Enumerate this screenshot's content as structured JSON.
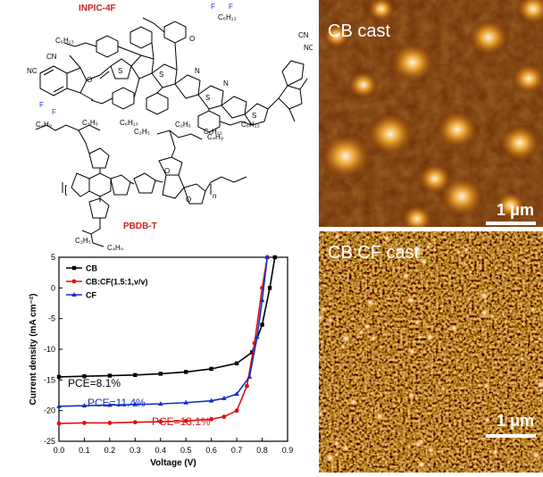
{
  "chemistry": {
    "acceptor_name": "INPIC-4F",
    "donor_name": "PBDB-T",
    "label_color": "#cc2222",
    "atoms": {
      "F": "F",
      "N": "N",
      "O": "O",
      "S": "S",
      "CN": "CN",
      "NC": "NC",
      "C6H13": "C₆H₁₃",
      "C4H9": "C₄H₉",
      "C2H5": "C₂H₅",
      "n": "n"
    }
  },
  "afm": {
    "top_label": "CB cast",
    "bottom_label": "CB:CF cast",
    "scale_bar_label": "1 μm"
  },
  "chart_data": {
    "type": "line",
    "xlabel": "Voltage (V)",
    "ylabel": "Current density (mA cm⁻²)",
    "xlim": [
      0.0,
      0.9
    ],
    "ylim": [
      -25,
      5
    ],
    "x_ticks": [
      "0.0",
      "0.1",
      "0.2",
      "0.3",
      "0.4",
      "0.5",
      "0.6",
      "0.7",
      "0.8",
      "0.9"
    ],
    "y_ticks": [
      "5",
      "0",
      "-5",
      "-10",
      "-15",
      "-20",
      "-25"
    ],
    "legend_position": "top-left",
    "series": [
      {
        "name": "CB",
        "color": "#000000",
        "marker": "square",
        "x": [
          0.0,
          0.1,
          0.2,
          0.3,
          0.4,
          0.5,
          0.6,
          0.7,
          0.76,
          0.8,
          0.83,
          0.85
        ],
        "y": [
          -14.5,
          -14.4,
          -14.3,
          -14.2,
          -14.0,
          -13.7,
          -13.2,
          -12.3,
          -10.5,
          -6.0,
          0.0,
          5.0
        ]
      },
      {
        "name": "CB:CF(1.5:1,v/v)",
        "color": "#e01010",
        "marker": "circle",
        "x": [
          0.0,
          0.1,
          0.2,
          0.3,
          0.4,
          0.5,
          0.6,
          0.65,
          0.7,
          0.74,
          0.77,
          0.8,
          0.82
        ],
        "y": [
          -22.1,
          -22.0,
          -22.0,
          -21.9,
          -21.8,
          -21.7,
          -21.4,
          -21.0,
          -20.0,
          -16.0,
          -9.0,
          0.0,
          5.0
        ]
      },
      {
        "name": "CF",
        "color": "#1030c0",
        "marker": "triangle",
        "x": [
          0.0,
          0.1,
          0.2,
          0.3,
          0.4,
          0.5,
          0.6,
          0.65,
          0.7,
          0.75,
          0.78,
          0.8,
          0.82
        ],
        "y": [
          -19.3,
          -19.2,
          -19.1,
          -19.0,
          -18.9,
          -18.7,
          -18.4,
          -18.0,
          -17.3,
          -14.5,
          -8.0,
          -2.0,
          5.0
        ]
      }
    ],
    "annotations": [
      {
        "text": "PCE=8.1%",
        "color": "#000000"
      },
      {
        "text": "PCE=11.4%",
        "color": "#1030c0"
      },
      {
        "text": "PCE=13.1%",
        "color": "#e01010"
      }
    ]
  }
}
